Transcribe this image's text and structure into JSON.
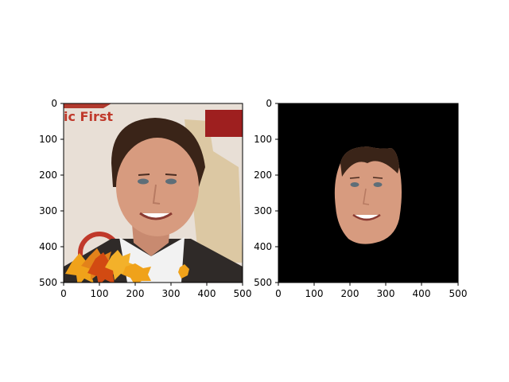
{
  "figure": {
    "panels": [
      {
        "id": "left",
        "description": "photo",
        "image_text": "ic First",
        "x_ticks": [
          "0",
          "100",
          "200",
          "300",
          "400",
          "500"
        ],
        "y_ticks": [
          "0",
          "100",
          "200",
          "300",
          "400",
          "500"
        ]
      },
      {
        "id": "right",
        "description": "mask",
        "x_ticks": [
          "0",
          "100",
          "200",
          "300",
          "400",
          "500"
        ],
        "y_ticks": [
          "0",
          "100",
          "200",
          "300",
          "400",
          "500"
        ]
      }
    ]
  },
  "colors": {
    "axis": "#000000",
    "background_photo": "#e8dfd6",
    "black": "#000000",
    "skin": "#d79b7f",
    "hair": "#3a2418",
    "jacket": "#2f2a28",
    "shirt": "#f2f2f2",
    "leaf_orange": "#f0a21a",
    "leaf_red": "#d24a12",
    "brand_red": "#c0392b"
  }
}
